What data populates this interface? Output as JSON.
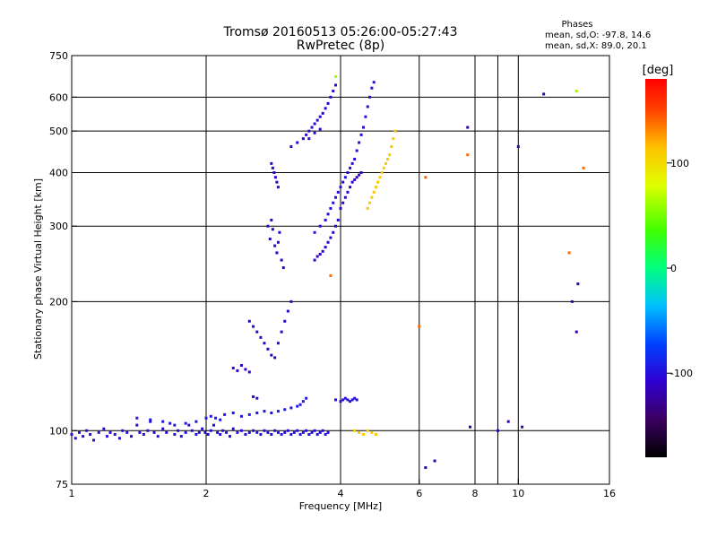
{
  "chart_data": {
    "type": "scatter",
    "title_line1": "Tromsø 20160513 05:26:00-05:27:43",
    "title_line2": "RwPretec (8p)",
    "phase_box": {
      "title": "Phases",
      "line1": "mean, sd,O: -97.8, 14.6",
      "line2": "mean, sd,X:  89.0, 20.1"
    },
    "xlabel": "Frequency [MHz]",
    "ylabel": "Stationary phase Virtual Height [km]",
    "x_scale": "log",
    "y_scale": "log",
    "xlim": [
      1,
      16
    ],
    "ylim": [
      75,
      750
    ],
    "x_ticks": [
      1,
      2,
      4,
      6,
      8,
      10,
      16
    ],
    "x_tick_labels": [
      "1",
      "2",
      "4",
      "6",
      "8",
      "10",
      "16"
    ],
    "x_grid": [
      2,
      4,
      6,
      8,
      10
    ],
    "x_minor": [
      9
    ],
    "y_ticks": [
      75,
      100,
      200,
      300,
      400,
      500,
      600,
      750
    ],
    "y_tick_labels": [
      "75",
      "100",
      "200",
      "300",
      "400",
      "500",
      "600",
      "750"
    ],
    "y_grid": [
      100,
      200,
      300,
      400,
      500,
      600
    ],
    "grid": true,
    "colorbar": {
      "label": "[deg]",
      "range": [
        -180,
        180
      ],
      "ticks": [
        100,
        0,
        -100
      ],
      "tick_labels": [
        "100",
        "0",
        "-100"
      ]
    },
    "series": [
      {
        "phase": -100,
        "points": [
          [
            1.0,
            98
          ],
          [
            1.02,
            96
          ],
          [
            1.04,
            99
          ],
          [
            1.06,
            97
          ],
          [
            1.08,
            100
          ],
          [
            1.1,
            98
          ],
          [
            1.12,
            95
          ],
          [
            1.15,
            99
          ],
          [
            1.18,
            101
          ],
          [
            1.2,
            97
          ],
          [
            1.22,
            99
          ],
          [
            1.25,
            98
          ],
          [
            1.28,
            96
          ],
          [
            1.3,
            100
          ],
          [
            1.33,
            99
          ],
          [
            1.36,
            97
          ],
          [
            1.4,
            103
          ],
          [
            1.42,
            99
          ],
          [
            1.45,
            98
          ],
          [
            1.48,
            100
          ],
          [
            1.5,
            105
          ],
          [
            1.53,
            99
          ],
          [
            1.56,
            97
          ],
          [
            1.6,
            101
          ],
          [
            1.63,
            99
          ],
          [
            1.66,
            104
          ],
          [
            1.7,
            98
          ],
          [
            1.73,
            100
          ],
          [
            1.76,
            97
          ],
          [
            1.8,
            99
          ],
          [
            1.83,
            103
          ],
          [
            1.86,
            100
          ],
          [
            1.9,
            98
          ],
          [
            1.93,
            99
          ],
          [
            1.96,
            101
          ],
          [
            1.99,
            99
          ],
          [
            2.02,
            98
          ],
          [
            2.05,
            100
          ],
          [
            2.08,
            103
          ],
          [
            2.12,
            99
          ],
          [
            2.15,
            98
          ],
          [
            2.18,
            100
          ],
          [
            2.22,
            99
          ],
          [
            2.26,
            97
          ],
          [
            2.3,
            101
          ],
          [
            2.35,
            99
          ],
          [
            2.4,
            100
          ],
          [
            2.45,
            98
          ],
          [
            2.5,
            99
          ],
          [
            2.55,
            100
          ],
          [
            2.6,
            99
          ],
          [
            2.65,
            98
          ],
          [
            2.7,
            100
          ],
          [
            2.75,
            99
          ],
          [
            2.8,
            98
          ],
          [
            2.85,
            100
          ],
          [
            2.9,
            99
          ],
          [
            2.95,
            98
          ],
          [
            3.0,
            99
          ],
          [
            3.05,
            100
          ],
          [
            3.1,
            98
          ],
          [
            3.15,
            99
          ],
          [
            3.2,
            100
          ],
          [
            3.25,
            98
          ],
          [
            3.3,
            99
          ],
          [
            3.35,
            100
          ],
          [
            3.4,
            98
          ],
          [
            3.45,
            99
          ],
          [
            3.5,
            100
          ],
          [
            3.55,
            98
          ],
          [
            3.6,
            99
          ],
          [
            3.65,
            100
          ],
          [
            3.7,
            98
          ],
          [
            3.75,
            99
          ]
        ]
      },
      {
        "phase": -95,
        "points": [
          [
            1.4,
            107
          ],
          [
            1.5,
            106
          ],
          [
            1.6,
            105
          ],
          [
            1.7,
            103
          ],
          [
            1.8,
            104
          ],
          [
            1.9,
            105
          ],
          [
            2.0,
            107
          ],
          [
            2.05,
            108
          ],
          [
            2.1,
            107
          ],
          [
            2.15,
            106
          ],
          [
            2.2,
            109
          ],
          [
            2.3,
            110
          ],
          [
            2.4,
            108
          ],
          [
            2.5,
            109
          ],
          [
            2.6,
            110
          ],
          [
            2.7,
            111
          ],
          [
            2.8,
            110
          ],
          [
            2.9,
            111
          ],
          [
            3.0,
            112
          ],
          [
            3.1,
            113
          ],
          [
            3.2,
            114
          ],
          [
            3.25,
            115
          ],
          [
            3.3,
            117
          ],
          [
            3.35,
            119
          ]
        ]
      },
      {
        "phase": -110,
        "points": [
          [
            2.3,
            140
          ],
          [
            2.35,
            138
          ],
          [
            2.4,
            142
          ],
          [
            2.45,
            139
          ],
          [
            2.5,
            137
          ],
          [
            2.55,
            120
          ],
          [
            2.6,
            119
          ],
          [
            2.5,
            180
          ],
          [
            2.55,
            175
          ],
          [
            2.6,
            170
          ],
          [
            2.65,
            165
          ],
          [
            2.7,
            160
          ],
          [
            2.75,
            155
          ],
          [
            2.8,
            150
          ],
          [
            2.85,
            148
          ],
          [
            2.9,
            160
          ],
          [
            2.95,
            170
          ],
          [
            3.0,
            180
          ],
          [
            3.05,
            190
          ],
          [
            3.1,
            200
          ]
        ]
      },
      {
        "phase": -110,
        "points": [
          [
            2.75,
            300
          ],
          [
            2.78,
            280
          ],
          [
            2.8,
            310
          ],
          [
            2.82,
            295
          ],
          [
            2.85,
            270
          ],
          [
            2.88,
            260
          ],
          [
            2.9,
            275
          ],
          [
            2.92,
            290
          ],
          [
            2.95,
            250
          ],
          [
            2.98,
            240
          ],
          [
            2.8,
            420
          ],
          [
            2.82,
            410
          ],
          [
            2.84,
            400
          ],
          [
            2.86,
            390
          ],
          [
            2.88,
            380
          ],
          [
            2.9,
            370
          ]
        ]
      },
      {
        "phase": -105,
        "points": [
          [
            3.1,
            460
          ],
          [
            3.2,
            470
          ],
          [
            3.3,
            480
          ],
          [
            3.35,
            490
          ],
          [
            3.4,
            500
          ],
          [
            3.45,
            510
          ],
          [
            3.5,
            520
          ],
          [
            3.55,
            530
          ],
          [
            3.6,
            540
          ],
          [
            3.65,
            550
          ],
          [
            3.7,
            565
          ],
          [
            3.75,
            580
          ],
          [
            3.8,
            600
          ],
          [
            3.85,
            620
          ],
          [
            3.9,
            640
          ],
          [
            3.4,
            480
          ],
          [
            3.5,
            495
          ],
          [
            3.6,
            505
          ]
        ]
      },
      {
        "phase": -100,
        "points": [
          [
            3.5,
            290
          ],
          [
            3.6,
            300
          ],
          [
            3.7,
            310
          ],
          [
            3.75,
            320
          ],
          [
            3.8,
            330
          ],
          [
            3.85,
            340
          ],
          [
            3.9,
            350
          ],
          [
            3.95,
            360
          ],
          [
            4.0,
            370
          ],
          [
            4.05,
            380
          ],
          [
            4.1,
            390
          ],
          [
            4.15,
            400
          ],
          [
            4.2,
            410
          ],
          [
            4.25,
            420
          ],
          [
            4.3,
            430
          ],
          [
            4.35,
            450
          ],
          [
            4.4,
            470
          ],
          [
            4.45,
            490
          ],
          [
            4.5,
            510
          ],
          [
            4.55,
            540
          ],
          [
            4.6,
            570
          ],
          [
            4.65,
            600
          ],
          [
            4.7,
            630
          ],
          [
            4.75,
            650
          ]
        ]
      },
      {
        "phase": -110,
        "points": [
          [
            3.5,
            250
          ],
          [
            3.55,
            255
          ],
          [
            3.6,
            258
          ],
          [
            3.65,
            262
          ],
          [
            3.7,
            268
          ],
          [
            3.75,
            275
          ],
          [
            3.8,
            282
          ],
          [
            3.85,
            290
          ],
          [
            3.9,
            300
          ],
          [
            3.95,
            310
          ],
          [
            4.0,
            330
          ],
          [
            4.05,
            340
          ],
          [
            4.1,
            350
          ],
          [
            4.15,
            360
          ],
          [
            4.2,
            370
          ],
          [
            4.25,
            380
          ],
          [
            4.3,
            385
          ],
          [
            4.35,
            390
          ],
          [
            4.4,
            395
          ],
          [
            4.45,
            400
          ]
        ]
      },
      {
        "phase": -100,
        "points": [
          [
            3.9,
            118
          ],
          [
            4.0,
            117
          ],
          [
            4.05,
            118
          ],
          [
            4.1,
            119
          ],
          [
            4.15,
            118
          ],
          [
            4.2,
            117
          ],
          [
            4.25,
            118
          ],
          [
            4.3,
            119
          ],
          [
            4.35,
            118
          ]
        ]
      },
      {
        "phase": 110,
        "points": [
          [
            4.6,
            330
          ],
          [
            4.65,
            340
          ],
          [
            4.7,
            350
          ],
          [
            4.75,
            360
          ],
          [
            4.8,
            370
          ],
          [
            4.85,
            380
          ],
          [
            4.9,
            390
          ],
          [
            4.95,
            400
          ],
          [
            5.0,
            410
          ],
          [
            5.05,
            420
          ],
          [
            5.1,
            430
          ],
          [
            5.15,
            440
          ],
          [
            5.2,
            460
          ],
          [
            5.25,
            480
          ],
          [
            5.3,
            500
          ]
        ]
      },
      {
        "phase": 110,
        "points": [
          [
            4.3,
            100
          ],
          [
            4.4,
            99
          ],
          [
            4.5,
            98
          ],
          [
            4.6,
            100
          ],
          [
            4.7,
            99
          ],
          [
            4.8,
            98
          ]
        ]
      },
      {
        "phase": -120,
        "points": [
          [
            6.2,
            82
          ],
          [
            6.5,
            85
          ],
          [
            7.8,
            102
          ],
          [
            9.0,
            100
          ],
          [
            9.5,
            105
          ],
          [
            10.2,
            102
          ],
          [
            11.4,
            610
          ],
          [
            13.2,
            200
          ],
          [
            13.5,
            170
          ],
          [
            13.6,
            220
          ],
          [
            7.7,
            510
          ],
          [
            10.0,
            460
          ]
        ]
      },
      {
        "phase": 140,
        "points": [
          [
            6.0,
            175
          ],
          [
            6.2,
            390
          ],
          [
            7.7,
            440
          ],
          [
            13.0,
            260
          ],
          [
            14.0,
            410
          ],
          [
            3.8,
            230
          ]
        ]
      },
      {
        "phase": 60,
        "points": [
          [
            13.5,
            620
          ],
          [
            3.9,
            670
          ]
        ]
      }
    ]
  }
}
